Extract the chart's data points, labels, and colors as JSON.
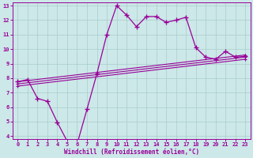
{
  "bg_color": "#cce8e8",
  "line_color": "#990099",
  "grid_color": "#aacccc",
  "xlabel": "Windchill (Refroidissement éolien,°C)",
  "xlim": [
    -0.5,
    23.5
  ],
  "ylim": [
    3.8,
    13.2
  ],
  "xticks": [
    0,
    1,
    2,
    3,
    4,
    5,
    6,
    7,
    8,
    9,
    10,
    11,
    12,
    13,
    14,
    15,
    16,
    17,
    18,
    19,
    20,
    21,
    22,
    23
  ],
  "yticks": [
    4,
    5,
    6,
    7,
    8,
    9,
    10,
    11,
    12,
    13
  ],
  "series1_x": [
    0,
    1,
    2,
    3,
    4,
    5,
    6,
    7,
    8,
    9,
    10,
    11,
    12,
    13,
    14,
    15,
    16,
    17,
    18,
    19,
    20,
    21,
    22,
    23
  ],
  "series1_y": [
    7.75,
    7.9,
    6.6,
    6.4,
    4.95,
    3.65,
    3.45,
    5.85,
    8.3,
    11.0,
    13.0,
    12.35,
    11.55,
    12.25,
    12.25,
    11.85,
    12.0,
    12.2,
    10.1,
    9.45,
    9.3,
    9.85,
    9.45,
    9.5
  ],
  "series2_x": [
    0,
    23
  ],
  "series2_y": [
    7.75,
    9.6
  ],
  "series3_x": [
    0,
    23
  ],
  "series3_y": [
    7.6,
    9.45
  ],
  "series4_x": [
    0,
    23
  ],
  "series4_y": [
    7.45,
    9.3
  ]
}
